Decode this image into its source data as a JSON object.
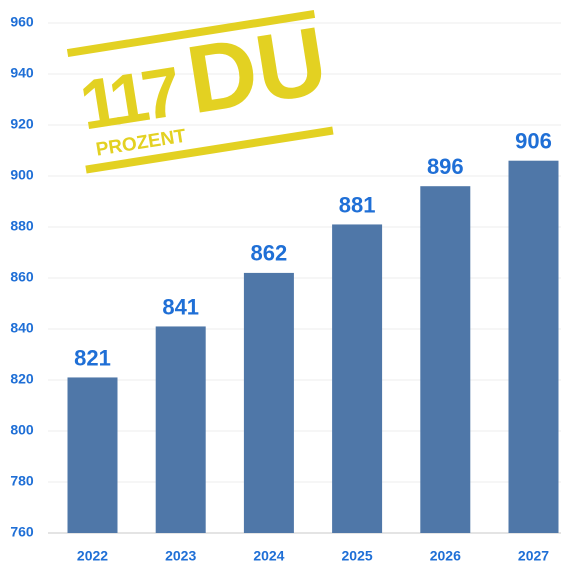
{
  "chart_data": {
    "type": "bar",
    "categories": [
      "2022",
      "2023",
      "2024",
      "2025",
      "2026",
      "2027"
    ],
    "values": [
      821,
      841,
      862,
      881,
      896,
      906
    ],
    "color": "#4f77a8",
    "ylim": [
      760,
      960
    ],
    "yticks": [
      760,
      780,
      800,
      820,
      840,
      860,
      880,
      900,
      920,
      940,
      960
    ],
    "grid": true
  },
  "logo": {
    "number": "117",
    "text": "DU",
    "sub": "PROZENT"
  }
}
